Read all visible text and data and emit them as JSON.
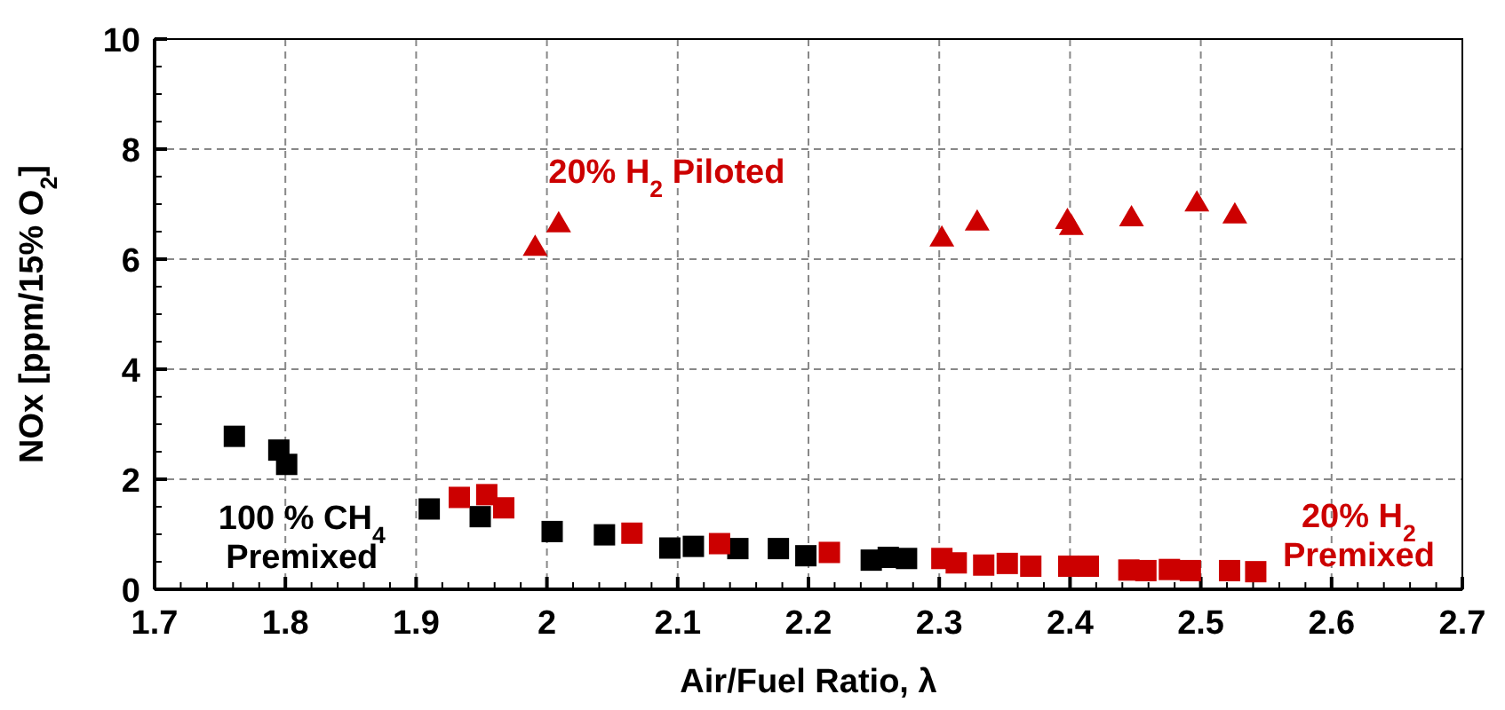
{
  "chart_data": {
    "type": "scatter",
    "xlabel": "Air/Fuel Ratio, λ",
    "ylabel": "NOx [ppm/15% O$_{2}$]",
    "xlim": [
      1.7,
      2.7
    ],
    "xticks": [
      1.7,
      1.8,
      1.9,
      {
        "value": 2,
        "label": "2"
      },
      2.1,
      2.2,
      2.3,
      2.4,
      2.5,
      2.6,
      2.7
    ],
    "ylim": [
      0,
      10
    ],
    "yticks": [
      0,
      2,
      4,
      6,
      8,
      10
    ],
    "grid": true,
    "series": [
      {
        "name": "100 % CH$_{4}$ Premixed",
        "color": "#000000",
        "marker": "square",
        "x": [
          1.761,
          1.795,
          1.801,
          1.91,
          1.949,
          2.004,
          2.044,
          2.094,
          2.112,
          2.146,
          2.177,
          2.198,
          2.248,
          2.261,
          2.275
        ],
        "values": [
          2.78,
          2.53,
          2.27,
          1.46,
          1.32,
          1.05,
          0.99,
          0.75,
          0.78,
          0.74,
          0.74,
          0.61,
          0.53,
          0.58,
          0.56
        ]
      },
      {
        "name": "20% H$_{2}$ Piloted",
        "color": "#cc0000",
        "marker": "triangle",
        "x": [
          1.991,
          2.009,
          2.302,
          2.329,
          2.398,
          2.401,
          2.447,
          2.497,
          2.526
        ],
        "values": [
          6.22,
          6.65,
          6.39,
          6.68,
          6.71,
          6.6,
          6.76,
          7.03,
          6.81
        ]
      },
      {
        "name": "20% H$_{2}$ Premixed",
        "color": "#cc0000",
        "marker": "square",
        "x": [
          1.933,
          1.954,
          1.967,
          2.065,
          2.132,
          2.216,
          2.302,
          2.313,
          2.334,
          2.352,
          2.37,
          2.399,
          2.414,
          2.445,
          2.458,
          2.476,
          2.492,
          2.522,
          2.542
        ],
        "values": [
          1.67,
          1.72,
          1.48,
          1.02,
          0.83,
          0.67,
          0.56,
          0.48,
          0.44,
          0.47,
          0.42,
          0.42,
          0.42,
          0.35,
          0.34,
          0.36,
          0.34,
          0.34,
          0.32
        ]
      }
    ]
  }
}
